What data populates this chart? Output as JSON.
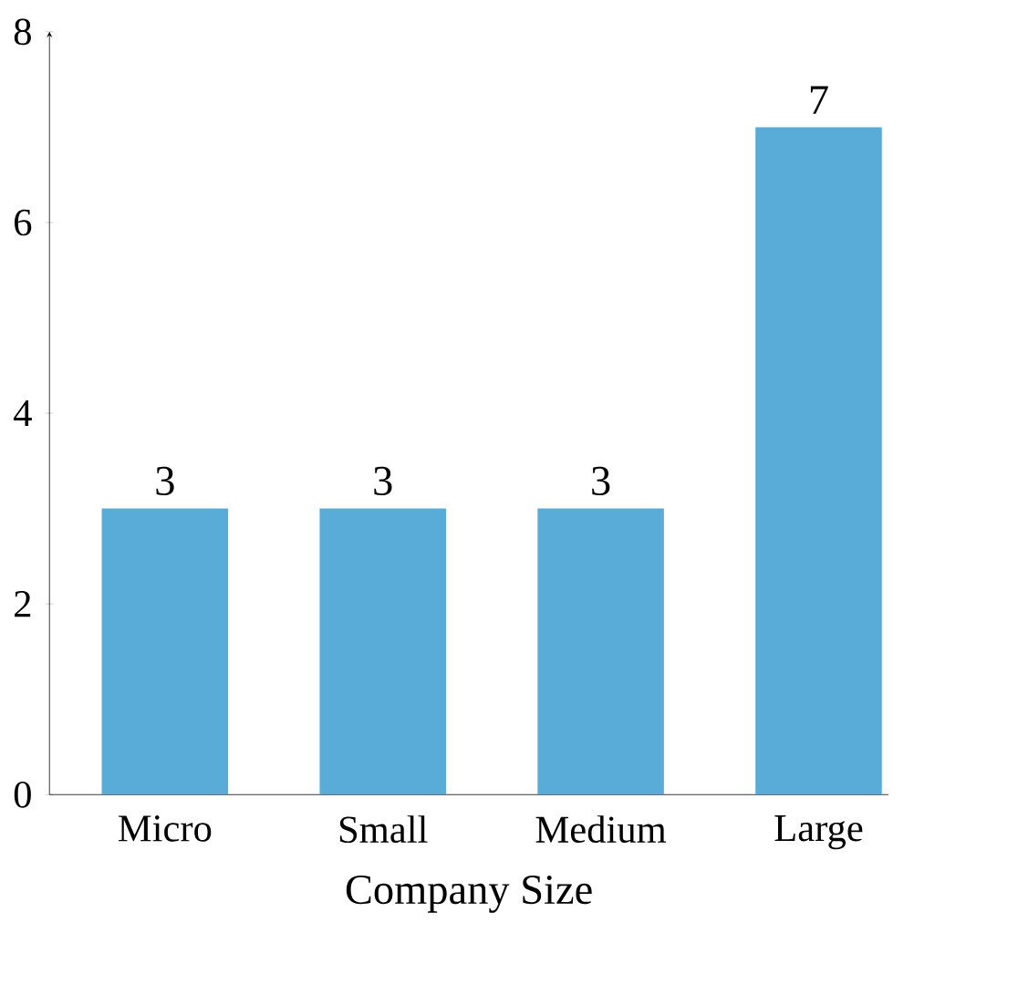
{
  "chart_data": {
    "type": "bar",
    "xlabel": "Company Size",
    "categories": [
      "Micro",
      "Small",
      "Medium",
      "Large"
    ],
    "values": [
      3,
      3,
      3,
      7
    ],
    "color": "#5aacd8",
    "ylim": [
      0,
      8
    ],
    "yticks": [
      0,
      2,
      4,
      6,
      8
    ],
    "data_labels": true
  }
}
